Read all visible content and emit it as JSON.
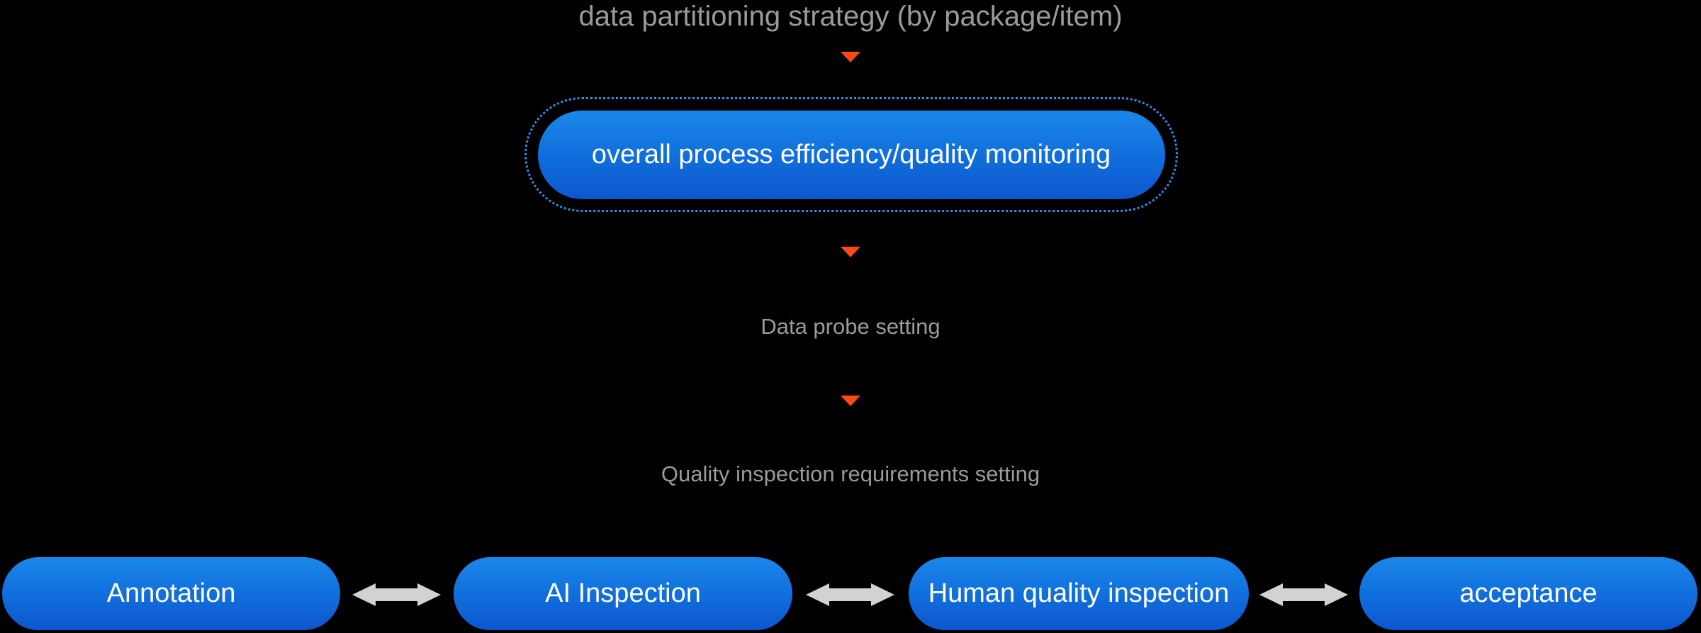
{
  "diagram": {
    "top_label": "data partitioning strategy (by package/item)",
    "monitor_pill_label": "overall process efficiency/quality monitoring",
    "probe_label": "Data probe setting",
    "quality_label": "Quality inspection requirements setting"
  },
  "pipeline": {
    "stages": [
      {
        "label": "Annotation"
      },
      {
        "label": "AI Inspection"
      },
      {
        "label": "Human quality inspection"
      },
      {
        "label": "acceptance"
      }
    ]
  },
  "icons": {
    "down_arrow": "down-arrow-icon",
    "double_arrow": "double-headed-arrow-icon"
  },
  "colors": {
    "background": "#000000",
    "pill_gradient_top": "#1b87e9",
    "pill_gradient_bottom": "#0d56ce",
    "dotted_outline_blue": "#2e8fea",
    "connector_orange": "#fb4b15",
    "connector_gray": "#d2d2d2",
    "label_gray": "#9a9a9a",
    "pill_text": "#ffffff"
  }
}
